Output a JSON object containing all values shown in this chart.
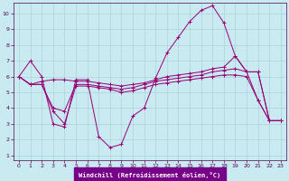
{
  "xlabel": "Windchill (Refroidissement éolien,°C)",
  "background_color": "#c8eaf0",
  "plot_bg": "#c8eaf0",
  "line_color": "#990077",
  "grid_color": "#aad4dc",
  "xlabel_bg": "#8800aa",
  "xlim": [
    -0.5,
    23.5
  ],
  "ylim": [
    0.7,
    10.7
  ],
  "yticks": [
    1,
    2,
    3,
    4,
    5,
    6,
    7,
    8,
    9,
    10
  ],
  "xticks": [
    0,
    1,
    2,
    3,
    4,
    5,
    6,
    7,
    8,
    9,
    10,
    11,
    12,
    13,
    14,
    15,
    16,
    17,
    18,
    19,
    20,
    21,
    22,
    23
  ],
  "series": [
    {
      "x": [
        0,
        1,
        2,
        3,
        4,
        5,
        6,
        7,
        8,
        9,
        10,
        11,
        12,
        13,
        14,
        15,
        16,
        17,
        18,
        19,
        20,
        21,
        22,
        23
      ],
      "y": [
        6.0,
        7.0,
        6.0,
        3.0,
        2.8,
        5.8,
        5.8,
        2.2,
        1.5,
        1.7,
        3.5,
        4.0,
        5.9,
        7.5,
        8.5,
        9.5,
        10.2,
        10.5,
        9.4,
        7.3,
        6.3,
        4.5,
        3.2,
        3.2
      ]
    },
    {
      "x": [
        0,
        1,
        2,
        3,
        4,
        5,
        6,
        7,
        8,
        9,
        10,
        11,
        12,
        13,
        14,
        15,
        16,
        17,
        18,
        19,
        20,
        21,
        22,
        23
      ],
      "y": [
        6.0,
        5.5,
        5.7,
        5.8,
        5.8,
        5.7,
        5.7,
        5.6,
        5.5,
        5.4,
        5.5,
        5.6,
        5.8,
        6.0,
        6.1,
        6.2,
        6.3,
        6.5,
        6.6,
        7.3,
        6.3,
        6.3,
        3.2,
        3.2
      ]
    },
    {
      "x": [
        0,
        1,
        2,
        3,
        4,
        5,
        6,
        7,
        8,
        9,
        10,
        11,
        12,
        13,
        14,
        15,
        16,
        17,
        18,
        19,
        20,
        21,
        22,
        23
      ],
      "y": [
        6.0,
        5.5,
        5.5,
        4.0,
        3.8,
        5.5,
        5.5,
        5.4,
        5.3,
        5.2,
        5.3,
        5.5,
        5.7,
        5.8,
        5.9,
        6.0,
        6.1,
        6.3,
        6.4,
        6.5,
        6.3,
        6.3,
        3.2,
        3.2
      ]
    },
    {
      "x": [
        0,
        1,
        2,
        3,
        4,
        5,
        6,
        7,
        8,
        9,
        10,
        11,
        12,
        13,
        14,
        15,
        16,
        17,
        18,
        19,
        20,
        21,
        22,
        23
      ],
      "y": [
        6.0,
        5.5,
        5.5,
        3.8,
        3.0,
        5.4,
        5.4,
        5.3,
        5.2,
        5.0,
        5.1,
        5.3,
        5.5,
        5.6,
        5.7,
        5.8,
        5.9,
        6.0,
        6.1,
        6.1,
        6.0,
        4.5,
        3.2,
        3.2
      ]
    }
  ]
}
